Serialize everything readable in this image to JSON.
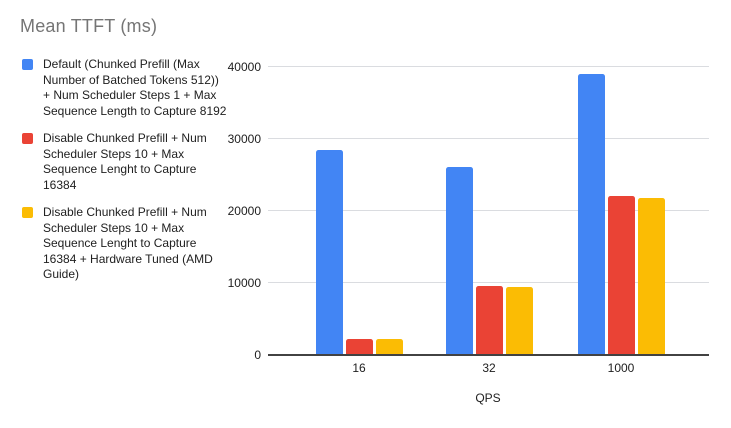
{
  "title": "Mean TTFT (ms)",
  "colors": {
    "series_blue": "#4285F4",
    "series_red": "#EA4335",
    "series_yellow": "#FBBC04",
    "title_text": "#757575",
    "axis_text": "#212121",
    "gridline": "#dadce0",
    "axis_line": "#424242",
    "background": "#ffffff"
  },
  "chart_data": {
    "type": "bar",
    "title": "Mean TTFT (ms)",
    "categories": [
      "16",
      "32",
      "1000"
    ],
    "series": [
      {
        "key": "default-chunked-prefill",
        "name": "Default (Chunked Prefill (Max Number of Batched Tokens 512)) + Num Scheduler Steps 1 + Max Sequence Length to Capture 8192",
        "color": "#4285F4",
        "values": [
          28300,
          26000,
          38900
        ]
      },
      {
        "key": "disable-chunked-prefill",
        "name": "Disable Chunked Prefill + Num Scheduler Steps 10 + Max Sequence Lenght to Capture 16384",
        "color": "#EA4335",
        "values": [
          2100,
          9500,
          21900
        ]
      },
      {
        "key": "disable-chunked-prefill-hw-tuned",
        "name": "Disable Chunked Prefill + Num Scheduler Steps 10 + Max Sequence Lenght to Capture 16384 + Hardware Tuned (AMD Guide)",
        "color": "#FBBC04",
        "values": [
          2050,
          9300,
          21600
        ]
      }
    ],
    "xlabel": "QPS",
    "ylabel": "",
    "ylim": [
      0,
      40000
    ],
    "yticks": [
      0,
      10000,
      20000,
      30000,
      40000
    ],
    "grid": true,
    "legend_position": "left"
  }
}
